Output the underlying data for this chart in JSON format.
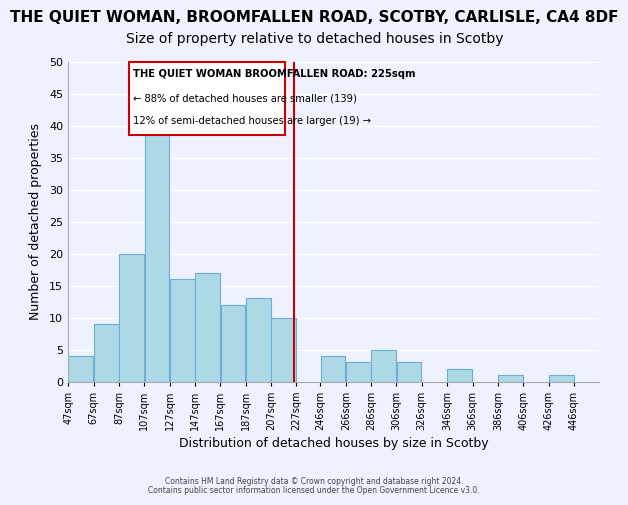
{
  "title": "THE QUIET WOMAN, BROOMFALLEN ROAD, SCOTBY, CARLISLE, CA4 8DF",
  "subtitle": "Size of property relative to detached houses in Scotby",
  "xlabel": "Distribution of detached houses by size in Scotby",
  "ylabel": "Number of detached properties",
  "bar_left_edges": [
    47,
    67,
    87,
    107,
    127,
    147,
    167,
    187,
    207,
    246,
    266,
    286,
    306,
    346,
    386,
    426
  ],
  "bar_widths": [
    20,
    20,
    20,
    20,
    20,
    20,
    20,
    20,
    20,
    20,
    20,
    20,
    20,
    20,
    20,
    20
  ],
  "bar_heights": [
    4,
    9,
    20,
    39,
    16,
    17,
    12,
    13,
    10,
    4,
    3,
    5,
    3,
    2,
    1,
    1
  ],
  "tick_labels": [
    "47sqm",
    "67sqm",
    "87sqm",
    "107sqm",
    "127sqm",
    "147sqm",
    "167sqm",
    "187sqm",
    "207sqm",
    "227sqm",
    "246sqm",
    "266sqm",
    "286sqm",
    "306sqm",
    "326sqm",
    "346sqm",
    "366sqm",
    "386sqm",
    "406sqm",
    "426sqm",
    "446sqm"
  ],
  "tick_positions": [
    47,
    67,
    87,
    107,
    127,
    147,
    167,
    187,
    207,
    227,
    246,
    266,
    286,
    306,
    326,
    346,
    366,
    386,
    406,
    426,
    446
  ],
  "bar_color": "#add8e6",
  "bar_edge_color": "#6baed6",
  "vline_x": 225,
  "vline_color": "#cc0000",
  "ylim": [
    0,
    50
  ],
  "xlim": [
    47,
    466
  ],
  "annotation_title": "THE QUIET WOMAN BROOMFALLEN ROAD: 225sqm",
  "annotation_line1": "← 88% of detached houses are smaller (139)",
  "annotation_line2": "12% of semi-detached houses are larger (19) →",
  "footnote1": "Contains HM Land Registry data © Crown copyright and database right 2024.",
  "footnote2": "Contains public sector information licensed under the Open Government Licence v3.0.",
  "background_color": "#eef2ff",
  "title_fontsize": 11,
  "subtitle_fontsize": 10
}
